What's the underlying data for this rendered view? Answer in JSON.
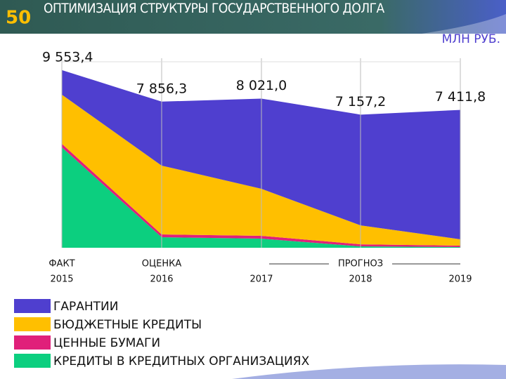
{
  "page_number": "50",
  "chart_data": {
    "type": "stacked_area",
    "title": "ОПТИМИЗАЦИЯ СТРУКТУРЫ ГОСУДАРСТВЕННОГО ДОЛГА",
    "unit": "МЛН РУБ.",
    "categories": [
      "2015",
      "2016",
      "2017",
      "2018",
      "2019"
    ],
    "category_notes": [
      "ФАКТ",
      "ОЦЕНКА",
      null,
      "ПРОГНОЗ",
      null
    ],
    "total_labels": [
      "9 553,4",
      "7 856,3",
      "8 021,0",
      "7 157,2",
      "7 411,8"
    ],
    "ylim": [
      0,
      10000
    ],
    "series": [
      {
        "name": "КРЕДИТЫ В КРЕДИТНЫХ ОРГАНИЗАЦИЯХ",
        "color": "#0ccf7f",
        "values": [
          5400,
          566,
          490,
          75,
          40
        ]
      },
      {
        "name": "ЦЕННЫЕ БУМАГИ",
        "color": "#e0207a",
        "values": [
          190,
          150,
          150,
          110,
          75
        ]
      },
      {
        "name": "БЮДЖЕТНЫЕ КРЕДИТЫ",
        "color": "#ffbf00",
        "values": [
          2643,
          3700,
          2530,
          1020,
          340
        ]
      },
      {
        "name": "ГАРАНТИИ",
        "color": "#4f3fcf",
        "values": [
          1320.4,
          3440.3,
          4851,
          5952.2,
          6956.8
        ]
      }
    ]
  }
}
